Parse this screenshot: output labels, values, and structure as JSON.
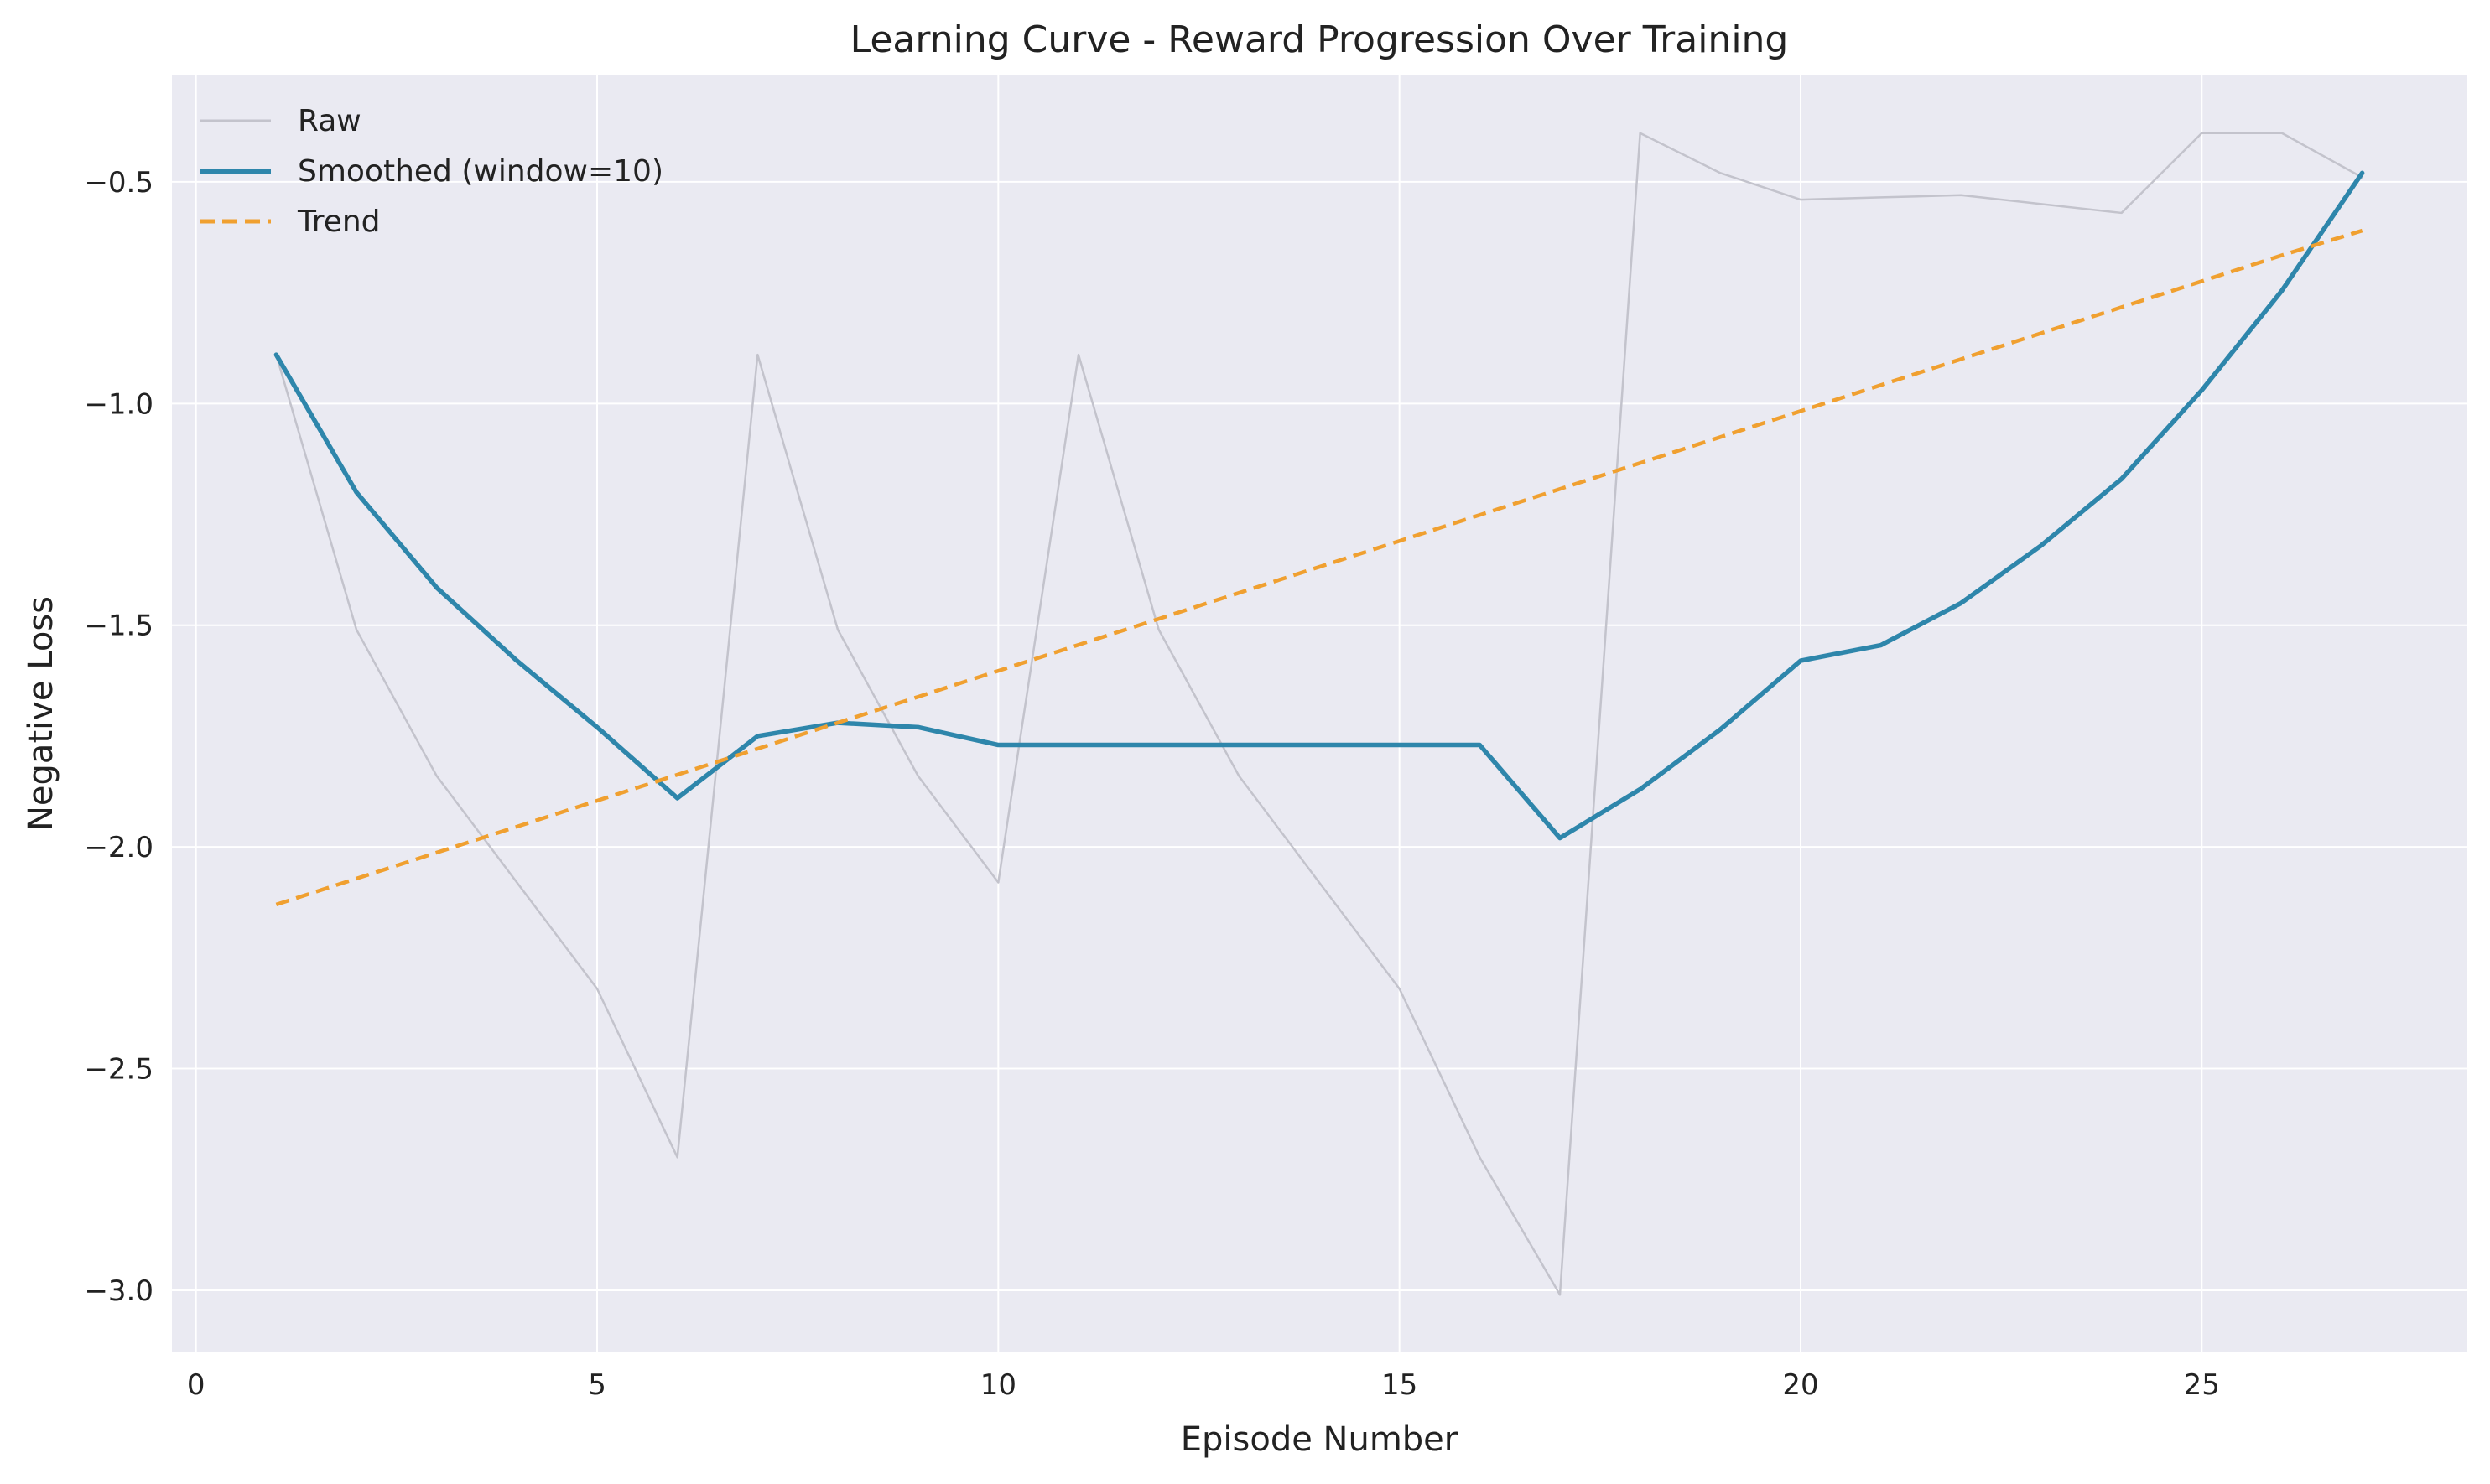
{
  "chart_data": {
    "type": "line",
    "title": "Learning Curve - Reward Progression Over Training",
    "xlabel": "Episode Number",
    "ylabel": "Negative Loss",
    "xlim": [
      -0.3,
      28.3
    ],
    "ylim": [
      -3.14,
      -0.26
    ],
    "xticks": [
      0,
      5,
      10,
      15,
      20,
      25
    ],
    "xtick_labels": [
      "0",
      "5",
      "10",
      "15",
      "20",
      "25"
    ],
    "yticks": [
      -3.0,
      -2.5,
      -2.0,
      -1.5,
      -1.0,
      -0.5
    ],
    "ytick_labels": [
      "−3.0",
      "−2.5",
      "−2.0",
      "−1.5",
      "−1.0",
      "−0.5"
    ],
    "grid": true,
    "legend_position": "top-left",
    "background_color": "#eaeaf2",
    "x": [
      1,
      2,
      3,
      4,
      5,
      6,
      7,
      8,
      9,
      10,
      11,
      12,
      13,
      14,
      15,
      16,
      17,
      18,
      19,
      20,
      21,
      22,
      23,
      24,
      25,
      26,
      27
    ],
    "series": [
      {
        "name": "Raw",
        "color": "#c3c3cc",
        "style": "solid",
        "values": [
          -0.89,
          -1.51,
          -1.84,
          -2.08,
          -2.32,
          -2.7,
          -0.89,
          -1.51,
          -1.84,
          -2.08,
          -0.89,
          -1.51,
          -1.84,
          -2.08,
          -2.32,
          -2.7,
          -3.01,
          -0.39,
          -0.48,
          -0.54,
          -0.535,
          -0.53,
          -0.55,
          -0.57,
          -0.39,
          -0.39,
          -0.49
        ]
      },
      {
        "name": "Smoothed (window=10)",
        "color": "#2e86ab",
        "style": "solid",
        "values": [
          -0.89,
          -1.2,
          -1.415,
          -1.58,
          -1.73,
          -1.89,
          -1.75,
          -1.72,
          -1.73,
          -1.77,
          -1.77,
          -1.77,
          -1.77,
          -1.77,
          -1.77,
          -1.77,
          -1.98,
          -1.87,
          -1.735,
          -1.58,
          -1.545,
          -1.45,
          -1.32,
          -1.17,
          -0.97,
          -0.745,
          -0.48
        ]
      },
      {
        "name": "Trend",
        "color": "#f0a030",
        "style": "dashed",
        "values": [
          -2.13,
          -2.0714,
          -2.0128,
          -1.9543,
          -1.8957,
          -1.8371,
          -1.7785,
          -1.7199,
          -1.6614,
          -1.6028,
          -1.5442,
          -1.4856,
          -1.427,
          -1.3685,
          -1.3099,
          -1.2513,
          -1.1927,
          -1.1341,
          -1.0756,
          -1.017,
          -0.9584,
          -0.8998,
          -0.8412,
          -0.7827,
          -0.7241,
          -0.6655,
          -0.61
        ]
      }
    ]
  }
}
